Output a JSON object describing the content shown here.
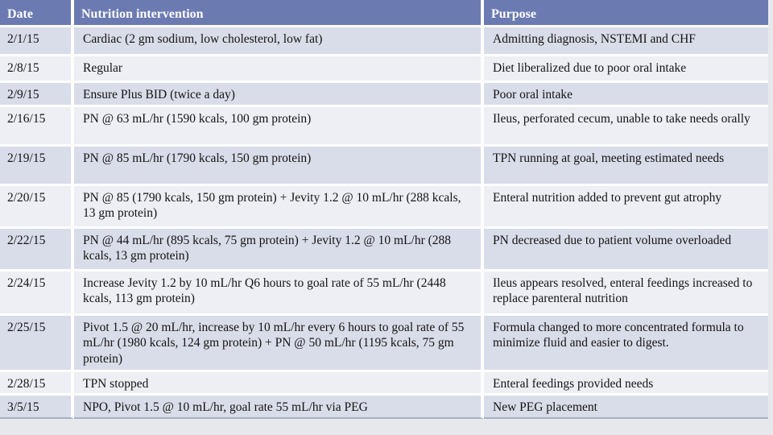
{
  "colors": {
    "header_bg": "#6b7ab1",
    "header_fg": "#ffffff",
    "row_dark": "#d9dce9",
    "row_light": "#edeff5",
    "separator": "#ffffff",
    "text": "#141414",
    "page_bg": "#e7e8ec"
  },
  "table": {
    "columns": [
      {
        "key": "date",
        "label": "Date"
      },
      {
        "key": "intervention",
        "label": "Nutrition intervention"
      },
      {
        "key": "purpose",
        "label": "Purpose"
      }
    ],
    "rows": [
      {
        "date": "2/1/15",
        "intervention": "Cardiac (2 gm sodium, low cholesterol, low fat)",
        "purpose": "Admitting diagnosis, NSTEMI and CHF"
      },
      {
        "date": "2/8/15",
        "intervention": "Regular",
        "purpose": "Diet liberalized due to poor oral intake"
      },
      {
        "date": "2/9/15",
        "intervention": "Ensure Plus BID (twice a day)",
        "purpose": "Poor oral intake"
      },
      {
        "date": "2/16/15",
        "intervention": "PN @ 63 mL/hr (1590 kcals, 100 gm protein)",
        "purpose": "Ileus, perforated cecum, unable to take needs orally"
      },
      {
        "date": "2/19/15",
        "intervention": "PN @ 85 mL/hr (1790 kcals, 150 gm protein)",
        "purpose": "TPN running at goal, meeting estimated needs"
      },
      {
        "date": "2/20/15",
        "intervention": "PN @ 85 (1790 kcals, 150 gm protein) + Jevity 1.2 @ 10 mL/hr (288 kcals, 13 gm protein)",
        "purpose": "Enteral nutrition added to prevent gut atrophy"
      },
      {
        "date": "2/22/15",
        "intervention": "PN @ 44 mL/hr (895 kcals, 75 gm protein) + Jevity 1.2 @ 10 mL/hr (288 kcals, 13 gm protein)",
        "purpose": "PN decreased due to patient volume overloaded"
      },
      {
        "date": "2/24/15",
        "intervention": "Increase Jevity 1.2 by 10 mL/hr Q6 hours to goal rate of 55 mL/hr (2448 kcals, 113 gm protein)",
        "purpose": "Ileus appears resolved, enteral feedings increased to replace parenteral nutrition"
      },
      {
        "date": "2/25/15",
        "intervention": "Pivot 1.5 @ 20 mL/hr, increase by 10 mL/hr every 6 hours to goal rate of 55 mL/hr (1980 kcals, 124 gm protein) + PN @ 50 mL/hr (1195 kcals, 75 gm protein)",
        "purpose": "Formula changed to more concentrated formula to minimize fluid and easier to digest."
      },
      {
        "date": "2/28/15",
        "intervention": "TPN stopped",
        "purpose": "Enteral feedings provided needs"
      },
      {
        "date": "3/5/15",
        "intervention": "NPO, Pivot 1.5 @ 10 mL/hr, goal rate 55 mL/hr via PEG",
        "purpose": "New PEG placement"
      }
    ]
  }
}
